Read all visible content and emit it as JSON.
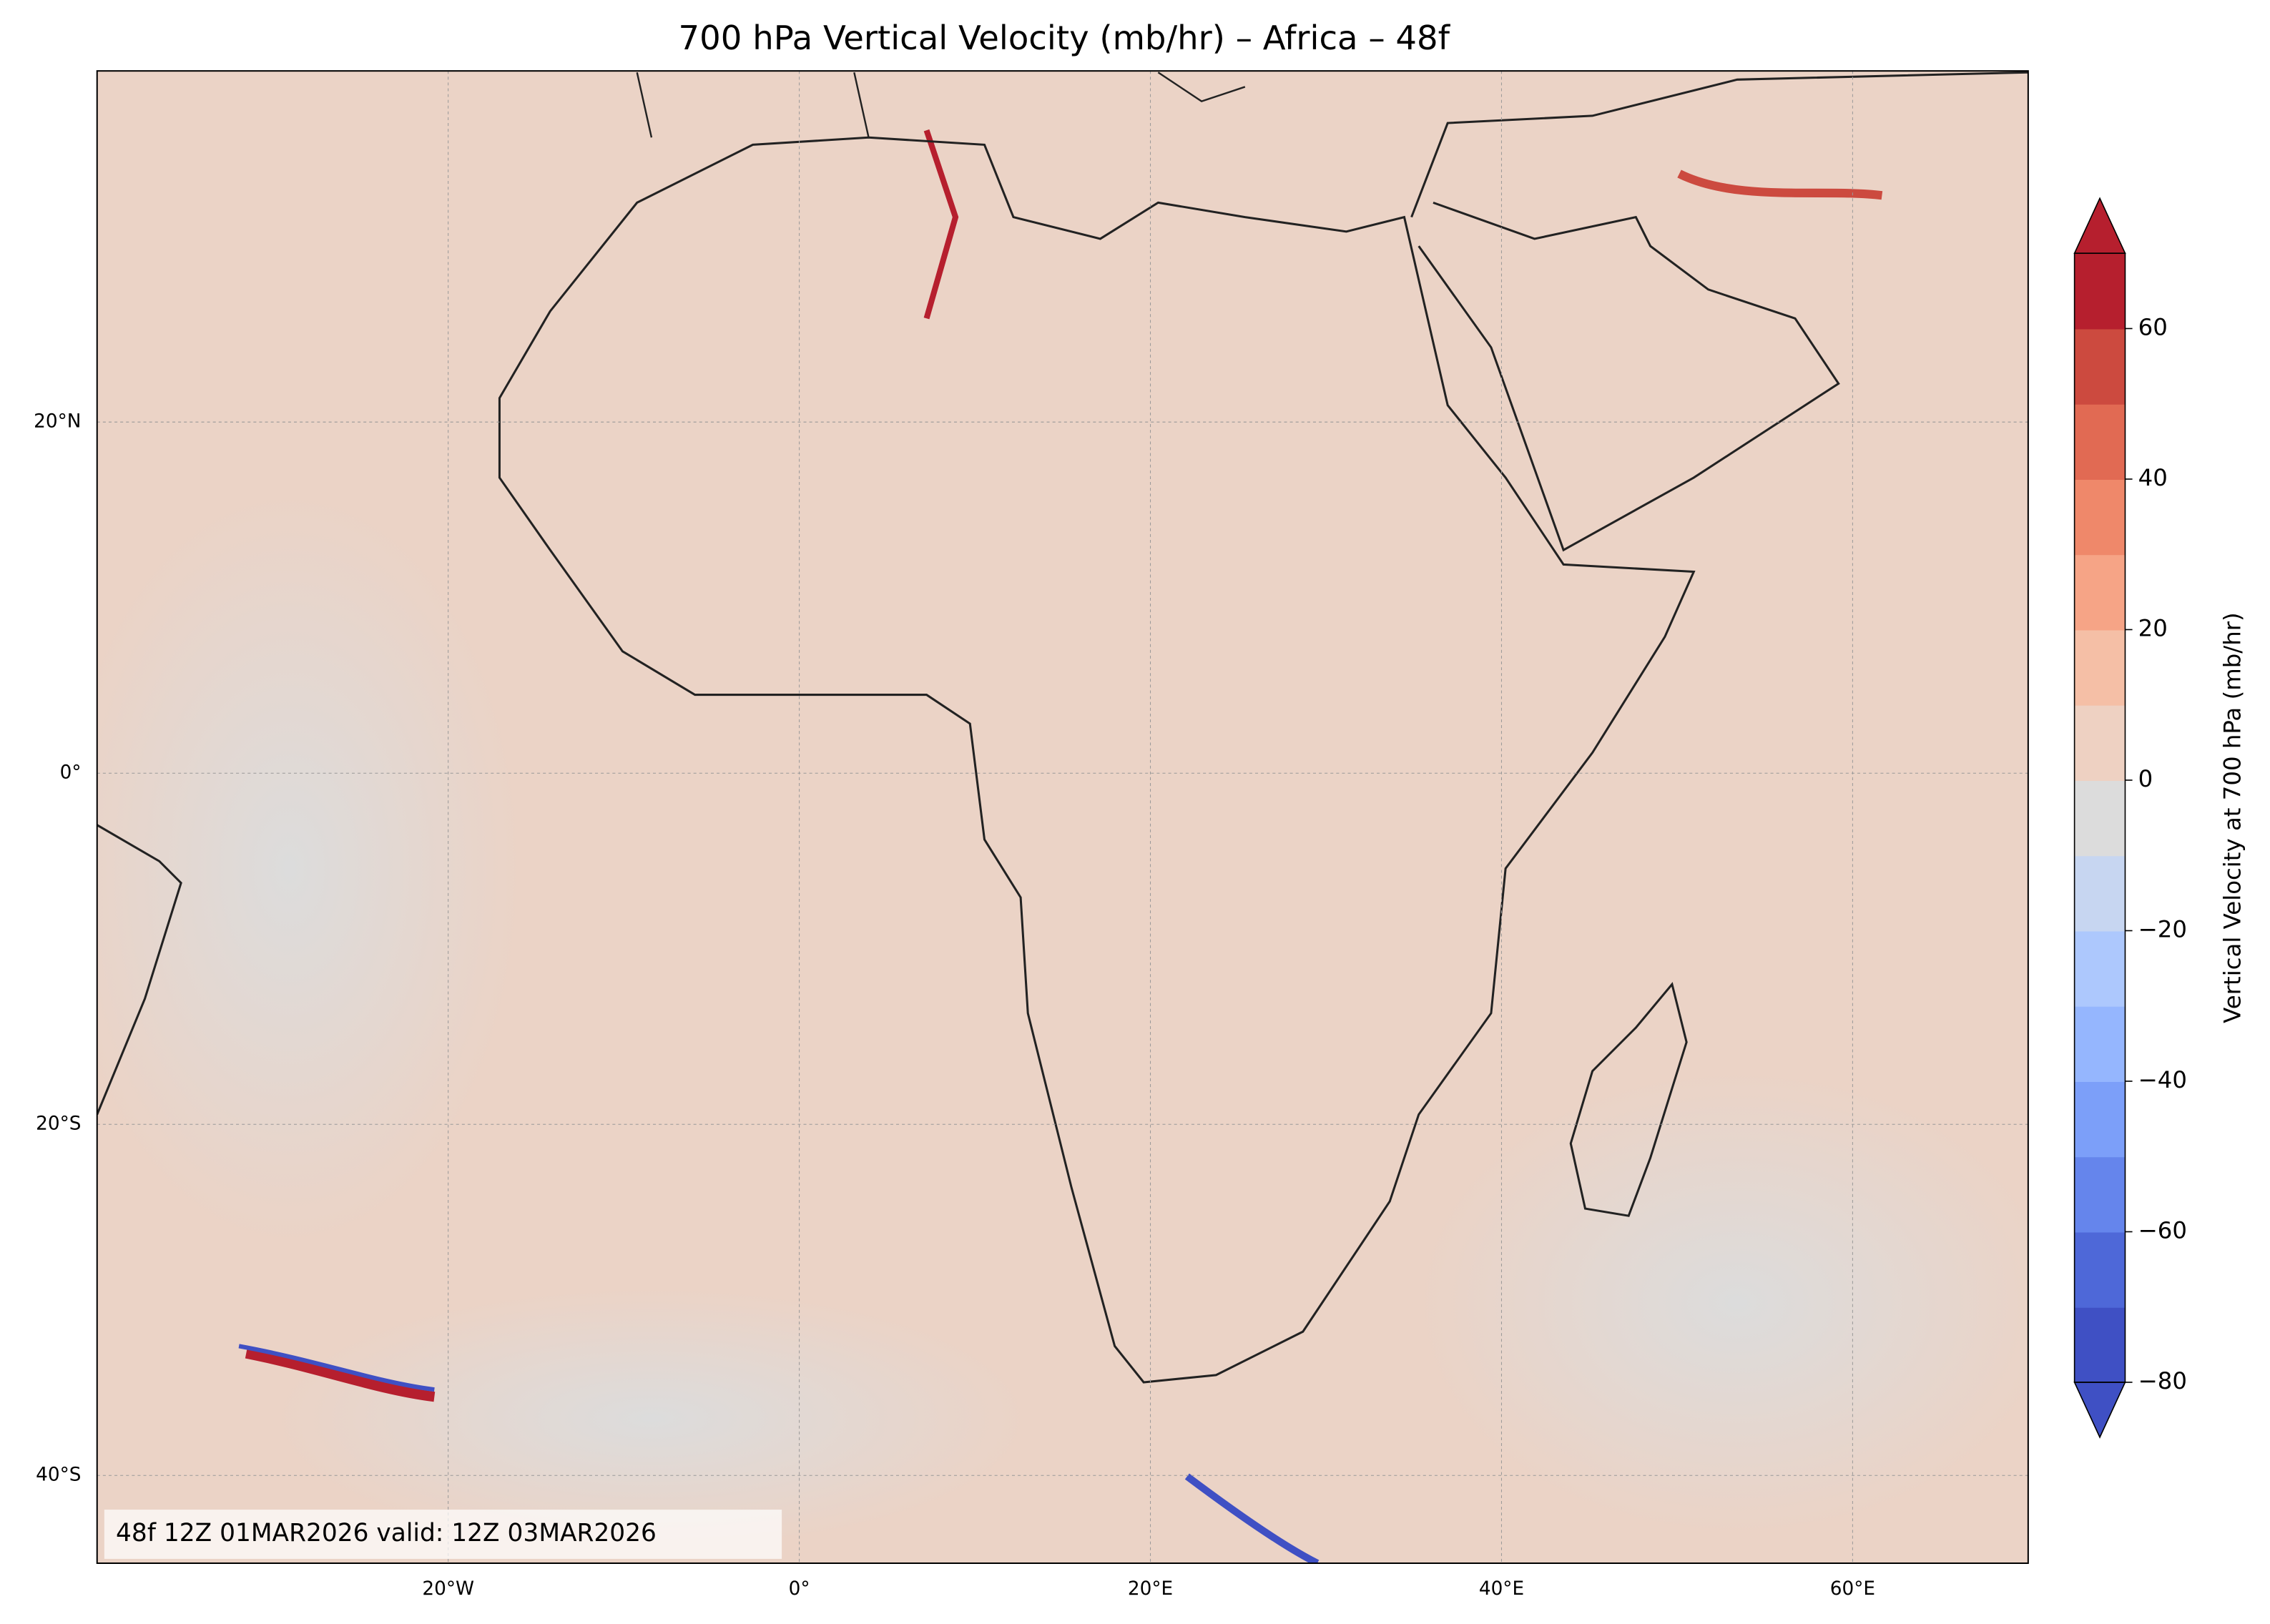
{
  "title": "700 hPa Vertical Velocity (mb/hr) – Africa – 48f",
  "map": {
    "xlim": [
      -40,
      70
    ],
    "ylim": [
      -45,
      40
    ],
    "xticks": [
      {
        "value": -20,
        "label": "20°W"
      },
      {
        "value": 0,
        "label": "0°"
      },
      {
        "value": 20,
        "label": "20°E"
      },
      {
        "value": 40,
        "label": "40°E"
      },
      {
        "value": 60,
        "label": "60°E"
      }
    ],
    "yticks": [
      {
        "value": 20,
        "label": "20°N"
      },
      {
        "value": 0,
        "label": "0°"
      },
      {
        "value": -20,
        "label": "20°S"
      },
      {
        "value": -40,
        "label": "40°S"
      }
    ],
    "grid": true,
    "annotation": "48f 12Z 01MAR2026 valid: 12Z 03MAR2026"
  },
  "colorbar": {
    "label": "Vertical Velocity at 700 hPa (mb/hr)",
    "levels": [
      -80,
      -70,
      -60,
      -50,
      -40,
      -30,
      -20,
      -10,
      0,
      10,
      20,
      30,
      40,
      50,
      60,
      70
    ],
    "colors": [
      "#3f50c4",
      "#4e68d8",
      "#6585ec",
      "#7c9ff9",
      "#95b6fe",
      "#adc8fd",
      "#c7d6f1",
      "#dcdcdc",
      "#eed1c2",
      "#f5bfa6",
      "#f6a486",
      "#ef886a",
      "#e16a53",
      "#cc4a3f",
      "#b61f2e"
    ],
    "extend": "both",
    "ticks": [
      {
        "value": -80,
        "label": "−80"
      },
      {
        "value": -60,
        "label": "−60"
      },
      {
        "value": -40,
        "label": "−40"
      },
      {
        "value": -20,
        "label": "−20"
      },
      0,
      20,
      40,
      60
    ]
  }
}
